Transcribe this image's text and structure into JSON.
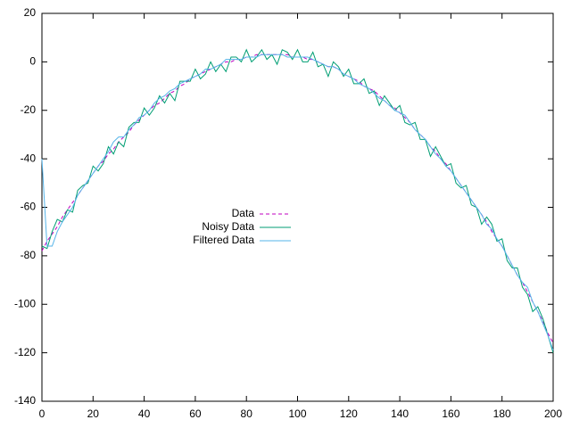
{
  "chart_data": {
    "type": "line",
    "x": [
      0,
      2,
      4,
      6,
      8,
      10,
      12,
      14,
      16,
      18,
      20,
      22,
      24,
      26,
      28,
      30,
      32,
      34,
      36,
      38,
      40,
      42,
      44,
      46,
      48,
      50,
      52,
      54,
      56,
      58,
      60,
      62,
      64,
      66,
      68,
      70,
      72,
      74,
      76,
      78,
      80,
      82,
      84,
      86,
      88,
      90,
      92,
      94,
      96,
      98,
      100,
      102,
      104,
      106,
      108,
      110,
      112,
      114,
      116,
      118,
      120,
      122,
      124,
      126,
      128,
      130,
      132,
      134,
      136,
      138,
      140,
      142,
      144,
      146,
      148,
      150,
      152,
      154,
      156,
      158,
      160,
      162,
      164,
      166,
      168,
      170,
      172,
      174,
      176,
      178,
      180,
      182,
      184,
      186,
      188,
      190,
      192,
      194,
      196,
      198,
      200
    ],
    "series": [
      {
        "name": "Data",
        "color": "#c000c0",
        "dash": true,
        "values": [
          -78,
          -74,
          -71,
          -68,
          -64,
          -61,
          -58,
          -55,
          -52,
          -49,
          -46,
          -43,
          -41,
          -38,
          -36,
          -33,
          -31,
          -29,
          -26,
          -24,
          -22,
          -20,
          -18,
          -17,
          -15,
          -13,
          -12,
          -10,
          -9,
          -7,
          -6,
          -5,
          -4,
          -3,
          -2,
          -1,
          0,
          0,
          1,
          1,
          2,
          2,
          3,
          3,
          3,
          3,
          3,
          3,
          3,
          2,
          2,
          2,
          1,
          1,
          0,
          -1,
          -2,
          -2,
          -3,
          -5,
          -6,
          -7,
          -8,
          -10,
          -11,
          -12,
          -14,
          -16,
          -18,
          -19,
          -21,
          -23,
          -25,
          -28,
          -30,
          -32,
          -35,
          -37,
          -40,
          -42,
          -45,
          -48,
          -51,
          -54,
          -57,
          -60,
          -63,
          -66,
          -70,
          -73,
          -76,
          -80,
          -84,
          -88,
          -91,
          -95,
          -99,
          -103,
          -107,
          -112,
          -116
        ]
      },
      {
        "name": "Noisy Data",
        "color": "#009e73",
        "dash": false,
        "values": [
          -76,
          -77,
          -70,
          -65,
          -66,
          -61,
          -62,
          -53,
          -51,
          -50,
          -43,
          -45,
          -42,
          -35,
          -38,
          -33,
          -35,
          -27,
          -25,
          -25,
          -19,
          -22,
          -19,
          -14,
          -17,
          -13,
          -16,
          -8,
          -8,
          -8,
          -3,
          -7,
          -5,
          0,
          -4,
          -1,
          -4,
          2,
          2,
          0,
          5,
          0,
          2,
          5,
          1,
          3,
          -1,
          5,
          4,
          1,
          5,
          0,
          0,
          4,
          -2,
          -1,
          -6,
          0,
          -2,
          -6,
          -3,
          -9,
          -9,
          -7,
          -13,
          -12,
          -18,
          -14,
          -17,
          -20,
          -18,
          -25,
          -26,
          -25,
          -32,
          -32,
          -39,
          -35,
          -39,
          -43,
          -42,
          -50,
          -52,
          -51,
          -59,
          -60,
          -67,
          -64,
          -67,
          -74,
          -73,
          -82,
          -85,
          -85,
          -93,
          -96,
          -103,
          -101,
          -106,
          -113,
          -120
        ]
      },
      {
        "name": "Filtered Data",
        "color": "#56b4e9",
        "dash": false,
        "values": [
          -40,
          -76,
          -76,
          -70,
          -66,
          -63,
          -60,
          -55,
          -52,
          -49,
          -46,
          -43,
          -40,
          -37,
          -33,
          -31,
          -31,
          -28,
          -26,
          -23,
          -22,
          -20,
          -17,
          -15,
          -14,
          -12,
          -11,
          -9,
          -8,
          -7,
          -6,
          -5,
          -3,
          -3,
          -2,
          -1,
          1,
          1,
          1,
          1,
          2,
          2,
          2,
          3,
          3,
          3,
          3,
          3,
          2,
          2,
          2,
          2,
          2,
          1,
          0,
          -1,
          -2,
          -2,
          -3,
          -5,
          -6,
          -7,
          -9,
          -10,
          -11,
          -13,
          -15,
          -16,
          -18,
          -20,
          -21,
          -22,
          -25,
          -28,
          -30,
          -32,
          -35,
          -38,
          -40,
          -43,
          -45,
          -48,
          -51,
          -54,
          -57,
          -60,
          -63,
          -67,
          -69,
          -73,
          -76,
          -80,
          -84,
          -88,
          -91,
          -93,
          -99,
          -103,
          -108,
          -113,
          -119
        ]
      }
    ],
    "xlim": [
      0,
      200
    ],
    "xticks": [
      0,
      20,
      40,
      60,
      80,
      100,
      120,
      140,
      160,
      180,
      200
    ],
    "ylim": [
      -140,
      20
    ],
    "yticks": [
      -140,
      -120,
      -100,
      -80,
      -60,
      -40,
      -20,
      0,
      20
    ],
    "grid": false,
    "legend": "center"
  }
}
